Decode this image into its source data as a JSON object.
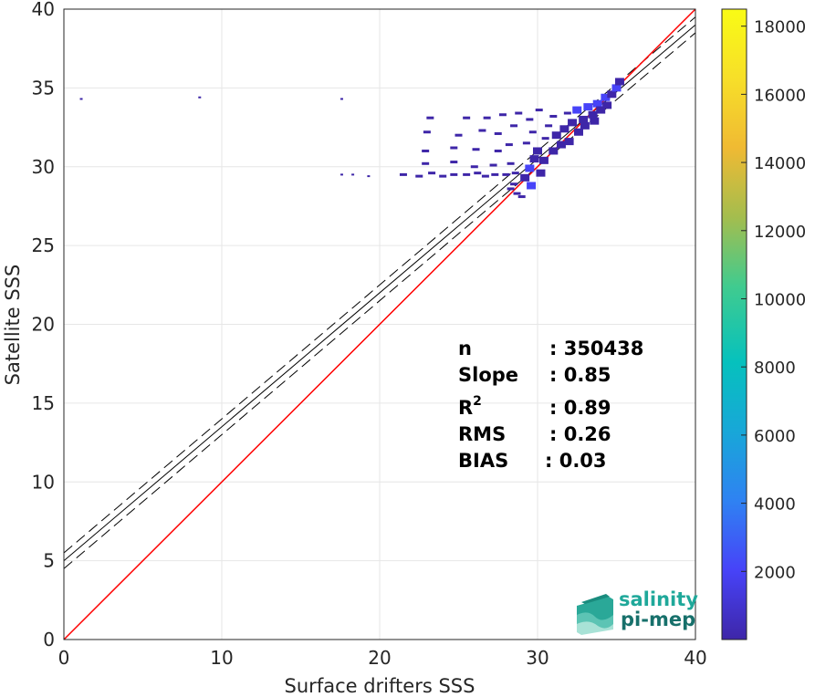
{
  "chart_data": {
    "type": "heatmap",
    "title": "",
    "xlabel": "Surface drifters SSS",
    "ylabel": "Satellite SSS",
    "xlim": [
      0,
      40
    ],
    "ylim": [
      0,
      40
    ],
    "xticks": [
      0,
      10,
      20,
      30,
      40
    ],
    "yticks": [
      0,
      5,
      10,
      15,
      20,
      25,
      30,
      35,
      40
    ],
    "grid": true,
    "colorbar": {
      "range": [
        0,
        18500
      ],
      "ticks": [
        2000,
        4000,
        6000,
        8000,
        10000,
        12000,
        14000,
        16000,
        18000
      ],
      "colormap": [
        "#3e26a8",
        "#4743f8",
        "#2f82f2",
        "#18a7d8",
        "#06c1bd",
        "#40cb8f",
        "#a4bd4e",
        "#f0ba33",
        "#f7df29",
        "#f9fb15"
      ]
    },
    "identity_line": {
      "slope": 1,
      "intercept": 0,
      "color": "#ff0000"
    },
    "regression_line": {
      "slope": 0.85,
      "intercept": 5.0,
      "color": "#000000"
    },
    "confidence_band": {
      "offset": 0.5,
      "style": "dashed"
    },
    "density_points": [
      {
        "x": 1.1,
        "y": 34.3
      },
      {
        "x": 8.6,
        "y": 34.4
      },
      {
        "x": 17.6,
        "y": 34.3
      },
      {
        "x": 17.6,
        "y": 29.5
      },
      {
        "x": 18.3,
        "y": 29.5
      },
      {
        "x": 19.3,
        "y": 29.4
      },
      {
        "x": 21.5,
        "y": 29.5
      },
      {
        "x": 22.5,
        "y": 29.4
      },
      {
        "x": 23.3,
        "y": 29.6
      },
      {
        "x": 24.0,
        "y": 29.4
      },
      {
        "x": 24.7,
        "y": 29.5
      },
      {
        "x": 25.5,
        "y": 29.5
      },
      {
        "x": 26.2,
        "y": 29.6
      },
      {
        "x": 26.7,
        "y": 29.4
      },
      {
        "x": 27.3,
        "y": 29.5
      },
      {
        "x": 28.0,
        "y": 29.5
      },
      {
        "x": 28.6,
        "y": 29.6
      },
      {
        "x": 22.9,
        "y": 30.2
      },
      {
        "x": 24.7,
        "y": 30.3
      },
      {
        "x": 26.0,
        "y": 30.0
      },
      {
        "x": 27.2,
        "y": 30.1
      },
      {
        "x": 28.3,
        "y": 30.2
      },
      {
        "x": 22.9,
        "y": 31.0
      },
      {
        "x": 24.7,
        "y": 31.2
      },
      {
        "x": 26.1,
        "y": 31.1
      },
      {
        "x": 27.5,
        "y": 31.0
      },
      {
        "x": 28.2,
        "y": 31.4
      },
      {
        "x": 23.0,
        "y": 32.2
      },
      {
        "x": 25.0,
        "y": 32.0
      },
      {
        "x": 26.5,
        "y": 32.3
      },
      {
        "x": 27.5,
        "y": 32.1
      },
      {
        "x": 28.5,
        "y": 32.6
      },
      {
        "x": 23.2,
        "y": 33.1
      },
      {
        "x": 25.5,
        "y": 33.1
      },
      {
        "x": 26.8,
        "y": 33.1
      },
      {
        "x": 27.8,
        "y": 33.3
      },
      {
        "x": 28.8,
        "y": 33.4
      },
      {
        "x": 28.5,
        "y": 28.9
      },
      {
        "x": 28.7,
        "y": 28.3
      },
      {
        "x": 28.3,
        "y": 28.6
      },
      {
        "x": 29.0,
        "y": 28.1
      },
      {
        "x": 29.2,
        "y": 29.3
      },
      {
        "x": 29.5,
        "y": 29.9
      },
      {
        "x": 29.8,
        "y": 30.5
      },
      {
        "x": 29.3,
        "y": 31.5
      },
      {
        "x": 29.7,
        "y": 32.2
      },
      {
        "x": 29.5,
        "y": 33.0
      },
      {
        "x": 30.0,
        "y": 31.0
      },
      {
        "x": 30.1,
        "y": 33.6
      },
      {
        "x": 30.4,
        "y": 30.4
      },
      {
        "x": 30.5,
        "y": 31.8
      },
      {
        "x": 30.7,
        "y": 32.6
      },
      {
        "x": 31.0,
        "y": 31.0
      },
      {
        "x": 31.2,
        "y": 32.0
      },
      {
        "x": 31.0,
        "y": 33.2
      },
      {
        "x": 31.5,
        "y": 31.4
      },
      {
        "x": 31.7,
        "y": 32.4
      },
      {
        "x": 31.9,
        "y": 33.4
      },
      {
        "x": 32.0,
        "y": 31.6
      },
      {
        "x": 32.2,
        "y": 32.8
      },
      {
        "x": 32.5,
        "y": 33.6
      },
      {
        "x": 32.6,
        "y": 32.2
      },
      {
        "x": 32.9,
        "y": 33.0
      },
      {
        "x": 33.2,
        "y": 33.8
      },
      {
        "x": 33.0,
        "y": 32.6
      },
      {
        "x": 33.5,
        "y": 33.3
      },
      {
        "x": 33.8,
        "y": 34.0
      },
      {
        "x": 33.6,
        "y": 32.9
      },
      {
        "x": 34.0,
        "y": 33.6
      },
      {
        "x": 34.3,
        "y": 34.4
      },
      {
        "x": 34.4,
        "y": 33.9
      },
      {
        "x": 34.7,
        "y": 34.6
      },
      {
        "x": 35.0,
        "y": 35.0
      },
      {
        "x": 35.2,
        "y": 35.4
      },
      {
        "x": 30.2,
        "y": 29.6
      },
      {
        "x": 29.6,
        "y": 28.8
      }
    ],
    "stats": {
      "n_label": "n",
      "n_value": ": 350438",
      "slope_label": "Slope",
      "slope_value": ": 0.85",
      "r2_label": "R",
      "r2_sup": "2",
      "r2_value": ": 0.89",
      "rms_label": "RMS",
      "rms_value": ": 0.26",
      "bias_label": "BIAS",
      "bias_value": ": 0.03"
    }
  },
  "logo": {
    "line1": "salinity",
    "line2": "pi-mep",
    "color1": "#1fa89a",
    "color2": "#17706b"
  }
}
